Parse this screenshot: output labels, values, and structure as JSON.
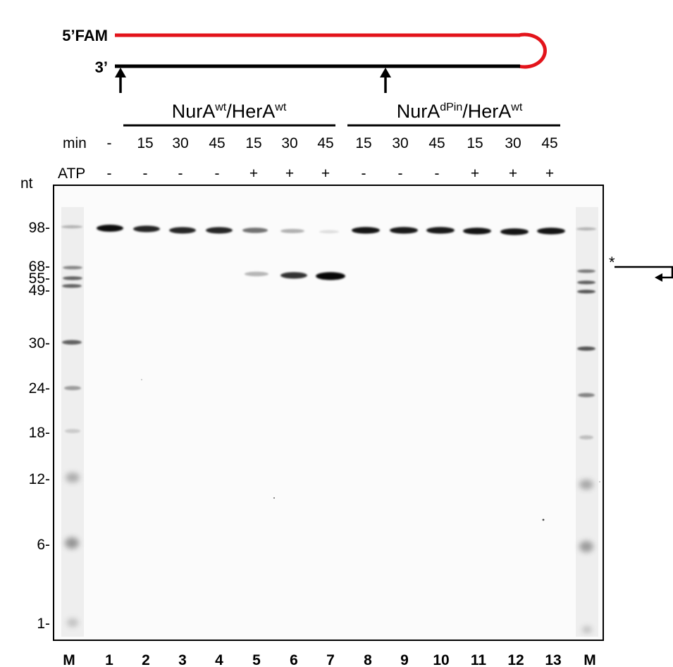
{
  "construct": {
    "label_top": "5’FAM",
    "label_bottom": "3’",
    "top_strand_color": "#e3141b",
    "bottom_strand_color": "#000000"
  },
  "groups": [
    {
      "name": "NurA",
      "sup1": "wt",
      "mid": "/HerA",
      "sup2": "wt"
    },
    {
      "name": "NurA",
      "sup1": "dPin",
      "mid": "/HerA",
      "sup2": "wt"
    }
  ],
  "rows": {
    "min_label": "min",
    "atp_label": "ATP",
    "nt_label": "nt"
  },
  "lanes": [
    {
      "lane": "M",
      "min": "",
      "atp": ""
    },
    {
      "lane": "1",
      "min": "-",
      "atp": "-"
    },
    {
      "lane": "2",
      "min": "15",
      "atp": "-"
    },
    {
      "lane": "3",
      "min": "30",
      "atp": "-"
    },
    {
      "lane": "4",
      "min": "45",
      "atp": "-"
    },
    {
      "lane": "5",
      "min": "15",
      "atp": "+"
    },
    {
      "lane": "6",
      "min": "30",
      "atp": "+"
    },
    {
      "lane": "7",
      "min": "45",
      "atp": "+"
    },
    {
      "lane": "8",
      "min": "15",
      "atp": "-"
    },
    {
      "lane": "9",
      "min": "30",
      "atp": "-"
    },
    {
      "lane": "10",
      "min": "45",
      "atp": "-"
    },
    {
      "lane": "11",
      "min": "15",
      "atp": "+"
    },
    {
      "lane": "12",
      "min": "30",
      "atp": "+"
    },
    {
      "lane": "13",
      "min": "45",
      "atp": "+"
    },
    {
      "lane": "M",
      "min": "",
      "atp": ""
    }
  ],
  "markers": [
    "98-",
    "68-",
    "55-",
    "49-",
    "30-",
    "24-",
    "18-",
    "12-",
    "6-",
    "1-"
  ],
  "annotation": {
    "star": "*"
  }
}
